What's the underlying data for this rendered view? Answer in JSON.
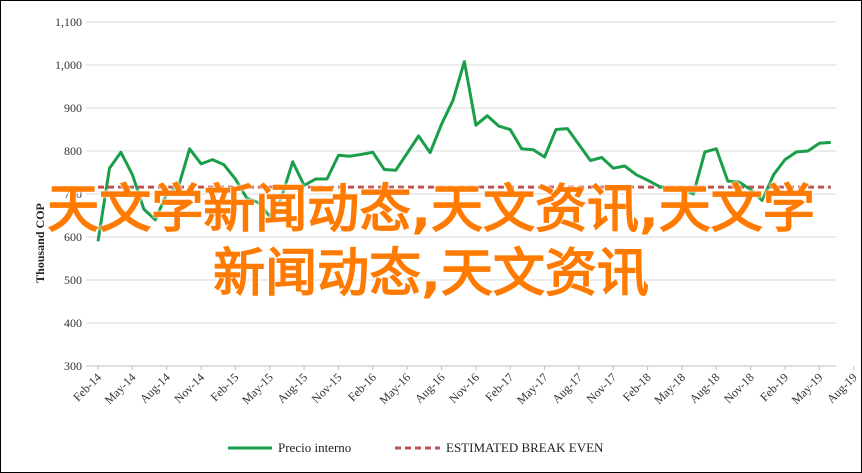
{
  "overlay": {
    "text": "天文学新闻动态,天文资讯,天文学新闻动态,天文资讯",
    "color": "#ff7a00"
  },
  "chart_data": {
    "type": "line",
    "ylabel": "Thousand COP",
    "ylim": [
      300,
      1100
    ],
    "yticks": [
      "300",
      "400",
      "500",
      "600",
      "700",
      "800",
      "900",
      "1,000",
      "1,100"
    ],
    "ytick_values": [
      300,
      400,
      500,
      600,
      700,
      800,
      900,
      1000,
      1100
    ],
    "xticks": [
      "Feb-14",
      "May-14",
      "Aug-14",
      "Nov-14",
      "Feb-15",
      "May-15",
      "Aug-15",
      "Nov-15",
      "Feb-16",
      "May-16",
      "Aug-16",
      "Nov-16",
      "Feb-17",
      "May-17",
      "Aug-17",
      "Nov-17",
      "Feb-18",
      "May-18",
      "Aug-18",
      "Nov-18",
      "Feb-19",
      "May-19",
      "Aug-19"
    ],
    "x_start": "Feb-14",
    "grid": "horizontal",
    "legend_position": "bottom",
    "series": [
      {
        "name": "Precio interno",
        "color": "#1a9e4a",
        "style": "solid",
        "values": [
          590,
          760,
          797,
          745,
          665,
          640,
          700,
          715,
          805,
          770,
          780,
          768,
          735,
          690,
          680,
          648,
          690,
          775,
          720,
          735,
          735,
          790,
          788,
          792,
          797,
          757,
          755,
          795,
          835,
          796,
          862,
          918,
          1008,
          860,
          882,
          858,
          850,
          805,
          803,
          786,
          850,
          852,
          815,
          778,
          785,
          760,
          765,
          745,
          732,
          718,
          710,
          710,
          700,
          798,
          805,
          730,
          728,
          710,
          685,
          745,
          780,
          798,
          800,
          818,
          820
        ]
      },
      {
        "name": "ESTIMATED BREAK EVEN",
        "color": "#c0504d",
        "style": "dashed",
        "value": 716
      }
    ]
  }
}
